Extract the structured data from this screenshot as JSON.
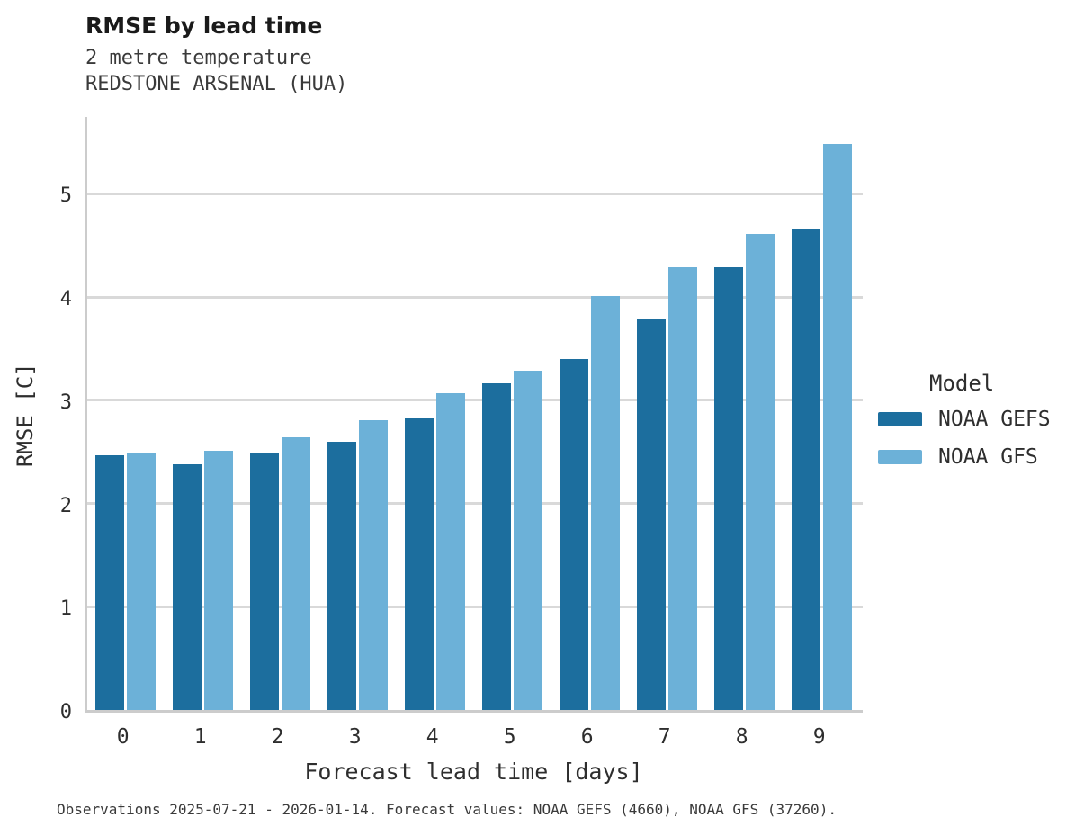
{
  "header": {
    "title": "RMSE by lead time",
    "subtitle_line1": "2 metre temperature",
    "subtitle_line2": "REDSTONE ARSENAL (HUA)"
  },
  "chart_data": {
    "type": "bar",
    "title": "RMSE by lead time",
    "subtitle": [
      "2 metre temperature",
      "REDSTONE ARSENAL (HUA)"
    ],
    "categories": [
      "0",
      "1",
      "2",
      "3",
      "4",
      "5",
      "6",
      "7",
      "8",
      "9"
    ],
    "series": [
      {
        "name": "NOAA GEFS",
        "color": "#1C6E9E",
        "values": [
          2.47,
          2.38,
          2.49,
          2.6,
          2.82,
          3.16,
          3.4,
          3.78,
          4.29,
          4.66
        ]
      },
      {
        "name": "NOAA GFS",
        "color": "#6CB1D8",
        "values": [
          2.49,
          2.51,
          2.64,
          2.81,
          3.07,
          3.29,
          4.01,
          4.29,
          4.61,
          5.48
        ]
      }
    ],
    "xlabel": "Forecast lead time [days]",
    "ylabel": "RMSE [C]",
    "ylim": [
      0,
      5.77
    ],
    "yticks": [
      0,
      1,
      2,
      3,
      4,
      5
    ],
    "grid": "horizontal",
    "legend": {
      "title": "Model",
      "position": "right"
    }
  },
  "colors": {
    "grid": "#D9D9D9",
    "axis": "#CCCCCC"
  },
  "footer": {
    "note": "Observations 2025-07-21 - 2026-01-14. Forecast values: NOAA GEFS (4660), NOAA GFS (37260)."
  }
}
